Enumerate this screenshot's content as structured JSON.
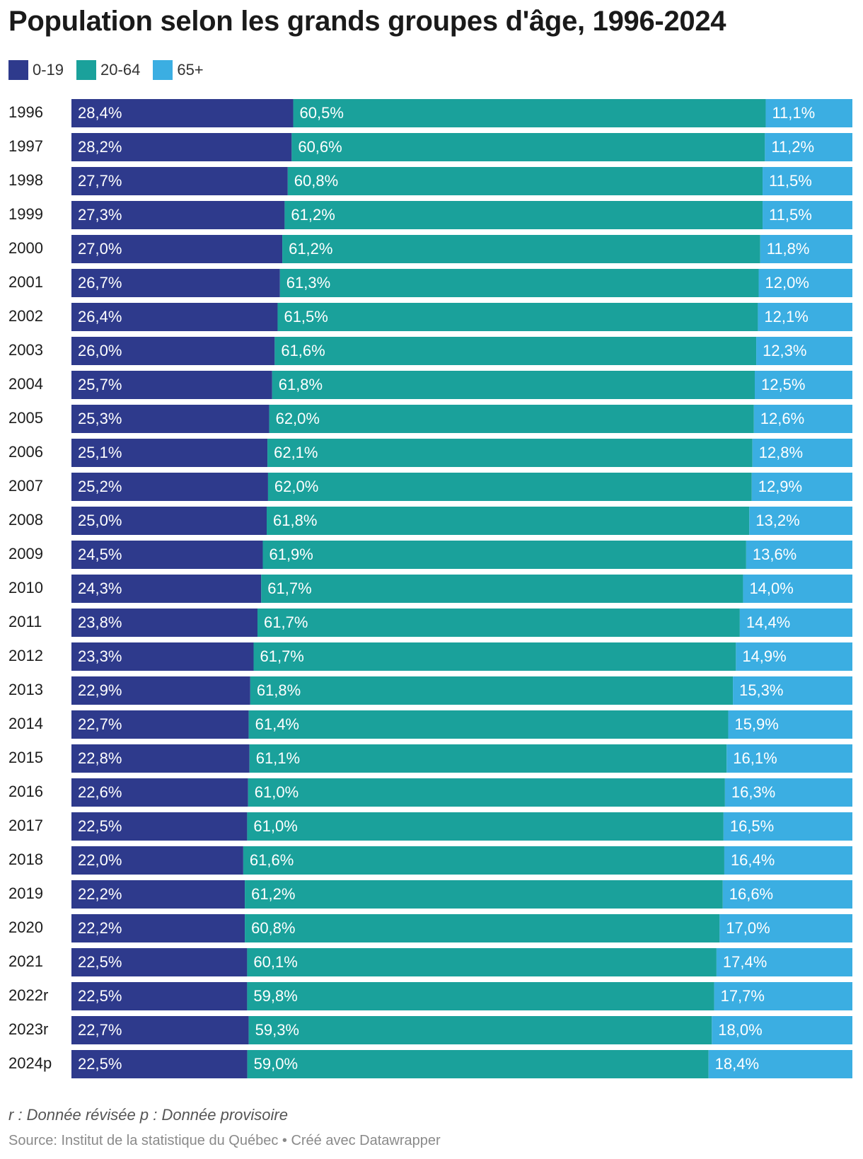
{
  "chart_data": {
    "type": "bar",
    "orientation": "horizontal",
    "stacked": true,
    "normalized": true,
    "title": "Population selon les grands groupes d'âge, 1996-2024",
    "categories": [
      "1996",
      "1997",
      "1998",
      "1999",
      "2000",
      "2001",
      "2002",
      "2003",
      "2004",
      "2005",
      "2006",
      "2007",
      "2008",
      "2009",
      "2010",
      "2011",
      "2012",
      "2013",
      "2014",
      "2015",
      "2016",
      "2017",
      "2018",
      "2019",
      "2020",
      "2021",
      "2022r",
      "2023r",
      "2024p"
    ],
    "series": [
      {
        "name": "0-19",
        "color": "#2e3a8c",
        "values": [
          28.4,
          28.2,
          27.7,
          27.3,
          27.0,
          26.7,
          26.4,
          26.0,
          25.7,
          25.3,
          25.1,
          25.2,
          25.0,
          24.5,
          24.3,
          23.8,
          23.3,
          22.9,
          22.7,
          22.8,
          22.6,
          22.5,
          22.0,
          22.2,
          22.2,
          22.5,
          22.5,
          22.7,
          22.5
        ],
        "labels": [
          "28,4%",
          "28,2%",
          "27,7%",
          "27,3%",
          "27,0%",
          "26,7%",
          "26,4%",
          "26,0%",
          "25,7%",
          "25,3%",
          "25,1%",
          "25,2%",
          "25,0%",
          "24,5%",
          "24,3%",
          "23,8%",
          "23,3%",
          "22,9%",
          "22,7%",
          "22,8%",
          "22,6%",
          "22,5%",
          "22,0%",
          "22,2%",
          "22,2%",
          "22,5%",
          "22,5%",
          "22,7%",
          "22,5%"
        ]
      },
      {
        "name": "20-64",
        "color": "#1aa19b",
        "values": [
          60.5,
          60.6,
          60.8,
          61.2,
          61.2,
          61.3,
          61.5,
          61.6,
          61.8,
          62.0,
          62.1,
          62.0,
          61.8,
          61.9,
          61.7,
          61.7,
          61.7,
          61.8,
          61.4,
          61.1,
          61.0,
          61.0,
          61.6,
          61.2,
          60.8,
          60.1,
          59.8,
          59.3,
          59.0
        ],
        "labels": [
          "60,5%",
          "60,6%",
          "60,8%",
          "61,2%",
          "61,2%",
          "61,3%",
          "61,5%",
          "61,6%",
          "61,8%",
          "62,0%",
          "62,1%",
          "62,0%",
          "61,8%",
          "61,9%",
          "61,7%",
          "61,7%",
          "61,7%",
          "61,8%",
          "61,4%",
          "61,1%",
          "61,0%",
          "61,0%",
          "61,6%",
          "61,2%",
          "60,8%",
          "60,1%",
          "59,8%",
          "59,3%",
          "59,0%"
        ]
      },
      {
        "name": "65+",
        "color": "#3baee2",
        "values": [
          11.1,
          11.2,
          11.5,
          11.5,
          11.8,
          12.0,
          12.1,
          12.3,
          12.5,
          12.6,
          12.8,
          12.9,
          13.2,
          13.6,
          14.0,
          14.4,
          14.9,
          15.3,
          15.9,
          16.1,
          16.3,
          16.5,
          16.4,
          16.6,
          17.0,
          17.4,
          17.7,
          18.0,
          18.4
        ],
        "labels": [
          "11,1%",
          "11,2%",
          "11,5%",
          "11,5%",
          "11,8%",
          "12,0%",
          "12,1%",
          "12,3%",
          "12,5%",
          "12,6%",
          "12,8%",
          "12,9%",
          "13,2%",
          "13,6%",
          "14,0%",
          "14,4%",
          "14,9%",
          "15,3%",
          "15,9%",
          "16,1%",
          "16,3%",
          "16,5%",
          "16,4%",
          "16,6%",
          "17,0%",
          "17,4%",
          "17,7%",
          "18,0%",
          "18,4%"
        ]
      }
    ],
    "legend_position": "top-left",
    "grid": false
  },
  "footer": {
    "note": "r : Donnée révisée p : Donnée provisoire",
    "source": "Source: Institut de la statistique du Québec • Créé avec Datawrapper"
  }
}
